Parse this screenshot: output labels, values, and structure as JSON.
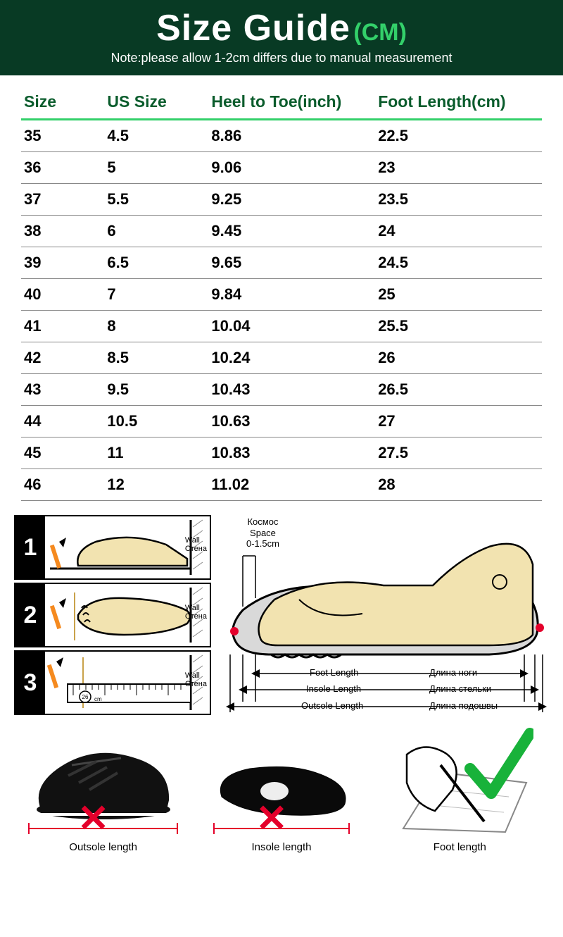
{
  "colors": {
    "banner_bg": "#083a24",
    "accent": "#33d06a",
    "header_text": "#0a5c2c",
    "row_border": "#888888",
    "red": "#e4002b",
    "green_check": "#18b23a",
    "pencil": "#f58a1f",
    "foot_fill": "#f2e3b0",
    "shoe_fill": "#d9d9d9"
  },
  "banner": {
    "title": "Size Guide",
    "unit": "(CM)",
    "title_fontsize": 52,
    "unit_fontsize": 34,
    "note": "Note:please allow 1-2cm differs due to manual measurement"
  },
  "table": {
    "columns": [
      "Size",
      "US Size",
      "Heel to Toe(inch)",
      "Foot Length(cm)"
    ],
    "col_widths_pct": [
      16,
      20,
      32,
      32
    ],
    "rows": [
      [
        "35",
        "4.5",
        "8.86",
        "22.5"
      ],
      [
        "36",
        "5",
        "9.06",
        "23"
      ],
      [
        "37",
        "5.5",
        "9.25",
        "23.5"
      ],
      [
        "38",
        "6",
        "9.45",
        "24"
      ],
      [
        "39",
        "6.5",
        "9.65",
        "24.5"
      ],
      [
        "40",
        "7",
        "9.84",
        "25"
      ],
      [
        "41",
        "8",
        "10.04",
        "25.5"
      ],
      [
        "42",
        "8.5",
        "10.24",
        "26"
      ],
      [
        "43",
        "9.5",
        "10.43",
        "26.5"
      ],
      [
        "44",
        "10.5",
        "10.63",
        "27"
      ],
      [
        "45",
        "11",
        "10.83",
        "27.5"
      ],
      [
        "46",
        "12",
        "11.02",
        "28"
      ]
    ]
  },
  "steps": {
    "numbers": [
      "1",
      "2",
      "3"
    ],
    "wall_label_en": "Wall",
    "wall_label_ru": "Стена",
    "ruler_label": "26",
    "ruler_unit": "cm"
  },
  "big_diagram": {
    "space_ru": "Космос",
    "space_en": "Space",
    "space_range": "0-1.5cm",
    "lines": [
      {
        "en": "Foot Length",
        "ru": "Длина ноги"
      },
      {
        "en": "Insole Length",
        "ru": "Длина стельки"
      },
      {
        "en": "Outsole Length",
        "ru": "Длина подошвы"
      }
    ]
  },
  "bottom": {
    "items": [
      {
        "caption": "Outsole length",
        "mark": "x"
      },
      {
        "caption": "Insole length",
        "mark": "x"
      },
      {
        "caption": "Foot length",
        "mark": "check"
      }
    ]
  }
}
